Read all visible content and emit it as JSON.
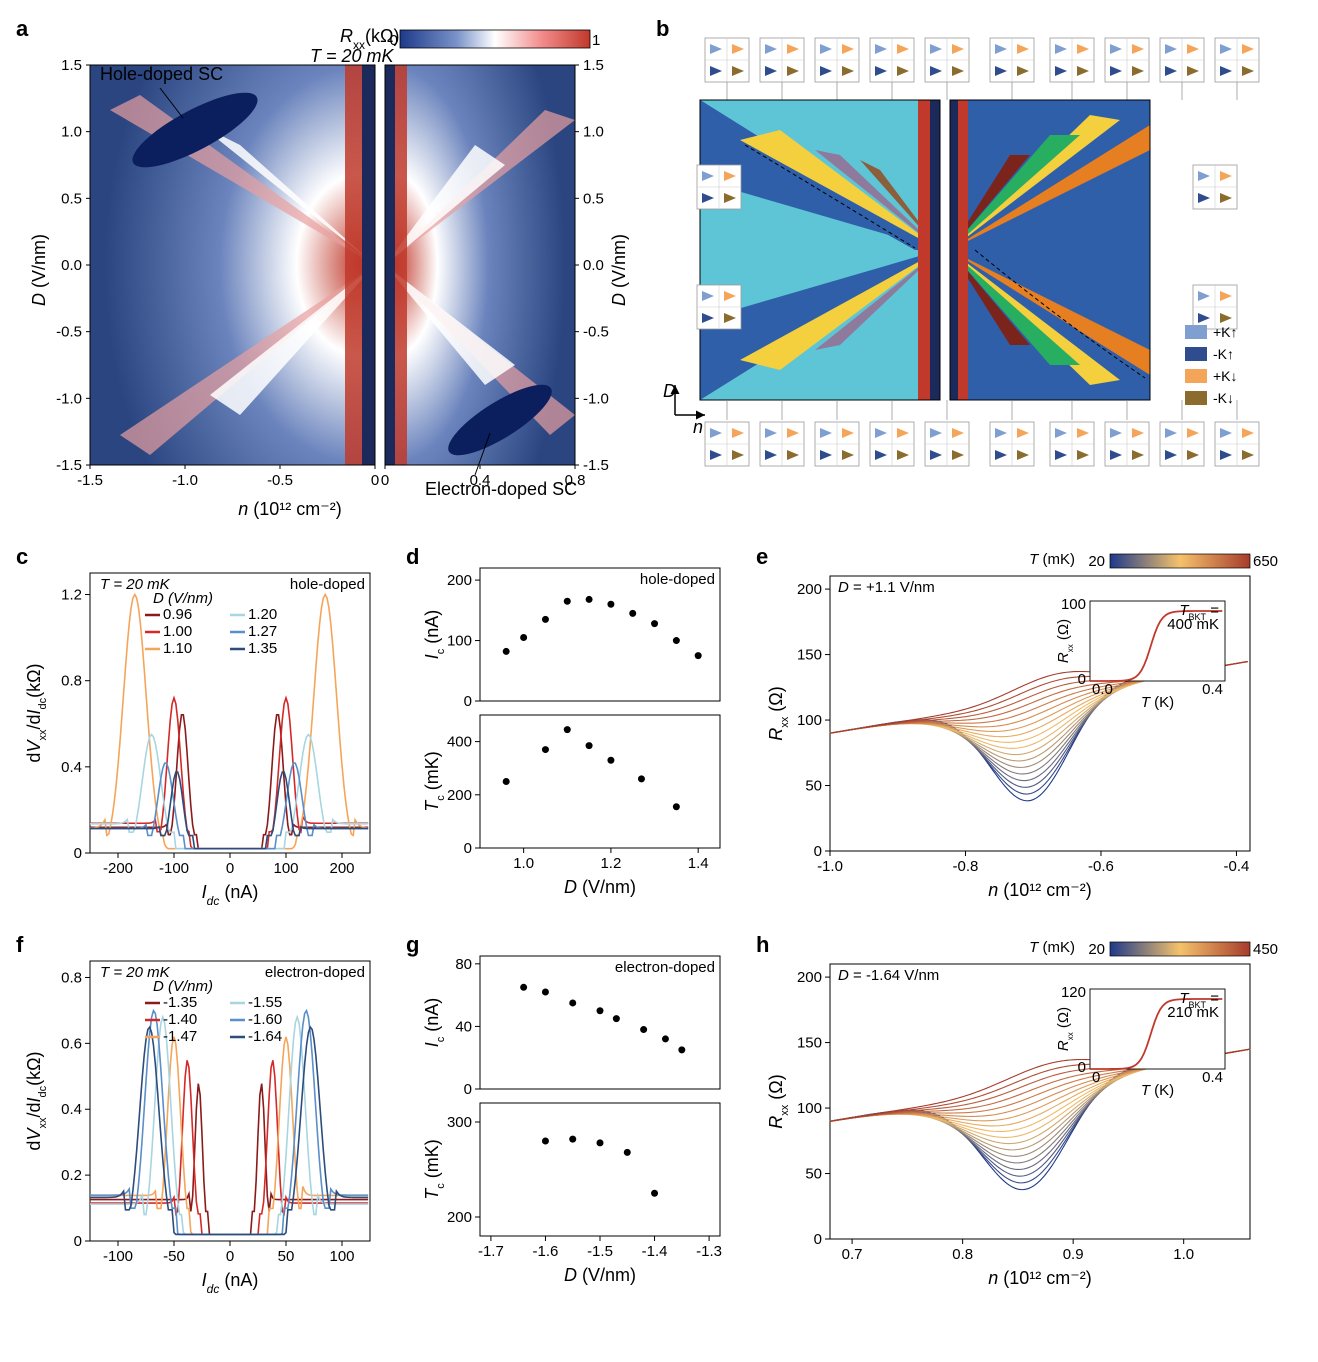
{
  "panel_a": {
    "label": "a",
    "annotation_hole": "Hole-doped SC",
    "annotation_electron": "Electron-doped SC",
    "temp_label": "T = 20 mK",
    "colorbar_label": "R<sub>xx</sub>(kΩ)",
    "colorbar_min": "0",
    "colorbar_max": "1",
    "xlabel": "n (10¹² cm⁻²)",
    "ylabel": "D (V/nm)",
    "xticks_left": [
      "-1.5",
      "-1.0",
      "-0.5",
      "0"
    ],
    "xticks_right": [
      "0",
      "0.4",
      "0.8"
    ],
    "yticks": [
      "-1.5",
      "-1.0",
      "-0.5",
      "0.0",
      "0.5",
      "1.0",
      "1.5"
    ],
    "colormap_colors": [
      "#1e3a8a",
      "#4f6db3",
      "#ffffff",
      "#f28a8a",
      "#d62828"
    ],
    "sc_region_color": "#0b1e5e"
  },
  "panel_b": {
    "label": "b",
    "axis_D": "D",
    "axis_n": "n",
    "phase_colors": {
      "main": "#2f5fa8",
      "cyan": "#5ec5d6",
      "yellow": "#f4d03f",
      "brown": "#8b5e3c",
      "red": "#c0392b",
      "green": "#27ae60",
      "orange": "#e67e22",
      "darkred": "#7b241c",
      "purple": "#8e7a9c"
    },
    "legend_items": [
      {
        "label": "+K↑",
        "color": "#7f9fd1"
      },
      {
        "label": "-K↑",
        "color": "#2f4c8f"
      },
      {
        "label": "+K↓",
        "color": "#f5a55a"
      },
      {
        "label": "-K↓",
        "color": "#8b6b2e"
      }
    ]
  },
  "panel_c": {
    "label": "c",
    "temp_label": "T = 20 mK",
    "region_label": "hole-doped",
    "legend_title": "D (V/nm)",
    "xlabel": "I_dc (nA)",
    "ylabel": "dV_xx/dI_dc(kΩ)",
    "xticks": [
      "-200",
      "-100",
      "0",
      "100",
      "200"
    ],
    "yticks": [
      "0",
      "0.4",
      "0.8",
      "1.2"
    ],
    "xlim": [
      -250,
      250
    ],
    "ylim": [
      0,
      1.3
    ],
    "series": [
      {
        "label": "0.96",
        "color": "#8b1a1a",
        "peak_x": 85,
        "peak_y": 0.65
      },
      {
        "label": "1.00",
        "color": "#d62828",
        "peak_x": 100,
        "peak_y": 0.72
      },
      {
        "label": "1.10",
        "color": "#f5a55a",
        "peak_x": 170,
        "peak_y": 1.2
      },
      {
        "label": "1.20",
        "color": "#a8d5e2",
        "peak_x": 140,
        "peak_y": 0.55
      },
      {
        "label": "1.27",
        "color": "#5a8fc9",
        "peak_x": 115,
        "peak_y": 0.42
      },
      {
        "label": "1.35",
        "color": "#2c4c7c",
        "peak_x": 95,
        "peak_y": 0.38
      }
    ]
  },
  "panel_d": {
    "label": "d",
    "region_label": "hole-doped",
    "xlabel": "D (V/nm)",
    "ylabel_top": "I_c (nA)",
    "ylabel_bot": "T_c (mK)",
    "xticks": [
      "1.0",
      "1.2",
      "1.4"
    ],
    "yticks_top": [
      "0",
      "100",
      "200"
    ],
    "yticks_bot": [
      "0",
      "200",
      "400"
    ],
    "xlim": [
      0.9,
      1.45
    ],
    "ylim_top": [
      0,
      220
    ],
    "ylim_bot": [
      0,
      500
    ],
    "ic_data": [
      [
        0.96,
        82
      ],
      [
        1.0,
        105
      ],
      [
        1.05,
        135
      ],
      [
        1.1,
        165
      ],
      [
        1.15,
        168
      ],
      [
        1.2,
        160
      ],
      [
        1.25,
        145
      ],
      [
        1.3,
        128
      ],
      [
        1.35,
        100
      ],
      [
        1.4,
        75
      ]
    ],
    "tc_data": [
      [
        0.96,
        250
      ],
      [
        1.05,
        370
      ],
      [
        1.1,
        445
      ],
      [
        1.15,
        385
      ],
      [
        1.2,
        330
      ],
      [
        1.27,
        260
      ],
      [
        1.35,
        155
      ]
    ],
    "point_color": "#000000"
  },
  "panel_e": {
    "label": "e",
    "D_label": "D = +1.1 V/nm",
    "colorbar_label": "T (mK)",
    "colorbar_min": "20",
    "colorbar_max": "650",
    "xlabel": "n (10¹² cm⁻²)",
    "ylabel": "R_xx (Ω)",
    "xticks": [
      "-1.0",
      "-0.8",
      "-0.6",
      "-0.4"
    ],
    "yticks": [
      "0",
      "50",
      "100",
      "150",
      "200"
    ],
    "xlim": [
      -1.0,
      -0.38
    ],
    "ylim": [
      0,
      210
    ],
    "inset": {
      "xlabel": "T (K)",
      "ylabel": "R_xx (Ω)",
      "TBKT": "T_BKT = 400 mK",
      "xticks": [
        "0.0",
        "0.4"
      ],
      "yticks": [
        "0",
        "100"
      ]
    },
    "colormap_colors": [
      "#1e3a8a",
      "#f5c26b",
      "#a63c2c"
    ]
  },
  "panel_f": {
    "label": "f",
    "temp_label": "T = 20 mK",
    "region_label": "electron-doped",
    "legend_title": "D (V/nm)",
    "xlabel": "I_dc (nA)",
    "ylabel": "dV_xx/dI_dc(kΩ)",
    "xticks": [
      "-100",
      "-50",
      "0",
      "50",
      "100"
    ],
    "yticks": [
      "0",
      "0.2",
      "0.4",
      "0.6",
      "0.8"
    ],
    "xlim": [
      -125,
      125
    ],
    "ylim": [
      0,
      0.85
    ],
    "series": [
      {
        "label": "-1.35",
        "color": "#8b1a1a",
        "peak_x": 28,
        "peak_y": 0.48
      },
      {
        "label": "-1.40",
        "color": "#d62828",
        "peak_x": 38,
        "peak_y": 0.55
      },
      {
        "label": "-1.47",
        "color": "#f5a55a",
        "peak_x": 50,
        "peak_y": 0.62
      },
      {
        "label": "-1.55",
        "color": "#a8d5e2",
        "peak_x": 60,
        "peak_y": 0.68
      },
      {
        "label": "-1.60",
        "color": "#5a8fc9",
        "peak_x": 68,
        "peak_y": 0.7
      },
      {
        "label": "-1.64",
        "color": "#2c4c7c",
        "peak_x": 72,
        "peak_y": 0.65
      }
    ]
  },
  "panel_g": {
    "label": "g",
    "region_label": "electron-doped",
    "xlabel": "D (V/nm)",
    "ylabel_top": "I_c (nA)",
    "ylabel_bot": "T_c (mK)",
    "xticks": [
      "-1.7",
      "-1.6",
      "-1.5",
      "-1.4",
      "-1.3"
    ],
    "yticks_top": [
      "0",
      "40",
      "80"
    ],
    "yticks_bot": [
      "200",
      "300"
    ],
    "xlim": [
      -1.72,
      -1.28
    ],
    "ylim_top": [
      0,
      85
    ],
    "ylim_bot": [
      180,
      320
    ],
    "ic_data": [
      [
        -1.64,
        65
      ],
      [
        -1.6,
        62
      ],
      [
        -1.55,
        55
      ],
      [
        -1.5,
        50
      ],
      [
        -1.47,
        45
      ],
      [
        -1.42,
        38
      ],
      [
        -1.38,
        32
      ],
      [
        -1.35,
        25
      ]
    ],
    "tc_data": [
      [
        -1.6,
        280
      ],
      [
        -1.55,
        282
      ],
      [
        -1.5,
        278
      ],
      [
        -1.45,
        268
      ],
      [
        -1.4,
        225
      ]
    ],
    "point_color": "#000000"
  },
  "panel_h": {
    "label": "h",
    "D_label": "D = -1.64 V/nm",
    "colorbar_label": "T (mK)",
    "colorbar_min": "20",
    "colorbar_max": "450",
    "xlabel": "n (10¹² cm⁻²)",
    "ylabel": "R_xx (Ω)",
    "xticks": [
      "0.7",
      "0.8",
      "0.9",
      "1.0"
    ],
    "yticks": [
      "0",
      "50",
      "100",
      "150",
      "200"
    ],
    "xlim": [
      0.68,
      1.06
    ],
    "ylim": [
      0,
      210
    ],
    "inset": {
      "xlabel": "T (K)",
      "ylabel": "R_xx (Ω)",
      "TBKT": "T_BKT = 210 mK",
      "xticks": [
        "0",
        "0.4"
      ],
      "yticks": [
        "0",
        "120"
      ]
    },
    "colormap_colors": [
      "#1e3a8a",
      "#f5c26b",
      "#a63c2c"
    ]
  }
}
